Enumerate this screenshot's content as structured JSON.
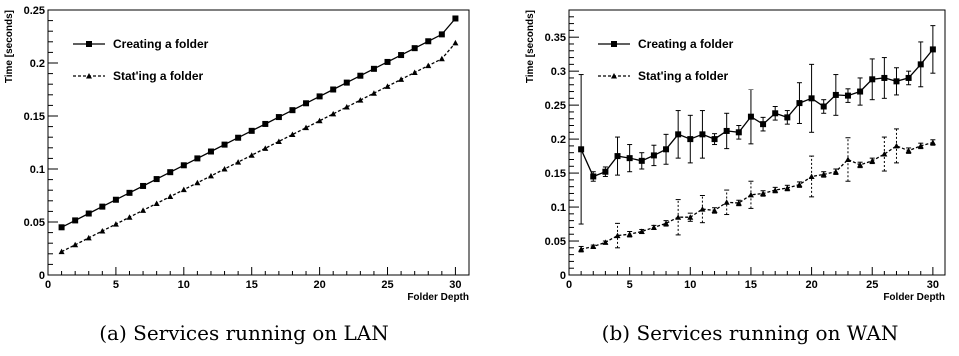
{
  "chart_data": [
    {
      "type": "line",
      "caption": "(a) Services running on LAN",
      "xlabel": "Folder Depth",
      "ylabel": "Time [seconds]",
      "xlim": [
        0,
        31
      ],
      "ylim": [
        0,
        0.25
      ],
      "xticks": [
        0,
        5,
        10,
        15,
        20,
        25,
        30
      ],
      "yticks": [
        0,
        0.05,
        0.1,
        0.15,
        0.2,
        0.25
      ],
      "legend_position": "top-left",
      "series": [
        {
          "name": "Creating a folder",
          "marker": "square",
          "line": "solid",
          "x": [
            1,
            2,
            3,
            4,
            5,
            6,
            7,
            8,
            9,
            10,
            11,
            12,
            13,
            14,
            15,
            16,
            17,
            18,
            19,
            20,
            21,
            22,
            23,
            24,
            25,
            26,
            27,
            28,
            29,
            30
          ],
          "y": [
            0.045,
            0.0515,
            0.058,
            0.0645,
            0.071,
            0.0775,
            0.084,
            0.0905,
            0.097,
            0.1035,
            0.11,
            0.1165,
            0.123,
            0.1295,
            0.136,
            0.1425,
            0.149,
            0.1555,
            0.162,
            0.1685,
            0.175,
            0.1815,
            0.188,
            0.1945,
            0.201,
            0.2075,
            0.214,
            0.2205,
            0.227,
            0.242
          ]
        },
        {
          "name": "Stat'ing a folder",
          "marker": "triangle",
          "line": "dashed",
          "x": [
            1,
            2,
            3,
            4,
            5,
            6,
            7,
            8,
            9,
            10,
            11,
            12,
            13,
            14,
            15,
            16,
            17,
            18,
            19,
            20,
            21,
            22,
            23,
            24,
            25,
            26,
            27,
            28,
            29,
            30
          ],
          "y": [
            0.022,
            0.0285,
            0.035,
            0.0415,
            0.048,
            0.0545,
            0.061,
            0.0675,
            0.074,
            0.0805,
            0.087,
            0.0935,
            0.1,
            0.1065,
            0.113,
            0.1195,
            0.126,
            0.1325,
            0.139,
            0.1455,
            0.152,
            0.1585,
            0.165,
            0.1715,
            0.178,
            0.1845,
            0.191,
            0.1975,
            0.204,
            0.219
          ]
        }
      ]
    },
    {
      "type": "line",
      "caption": "(b) Services running on WAN",
      "xlabel": "Folder Depth",
      "ylabel": "Time [seconds]",
      "xlim": [
        0,
        31
      ],
      "ylim": [
        0,
        0.39
      ],
      "xticks": [
        0,
        5,
        10,
        15,
        20,
        25,
        30
      ],
      "yticks": [
        0,
        0.05,
        0.1,
        0.15,
        0.2,
        0.25,
        0.3,
        0.35
      ],
      "legend_position": "top-left",
      "series": [
        {
          "name": "Creating a folder",
          "marker": "square",
          "line": "solid",
          "x": [
            1,
            2,
            3,
            4,
            5,
            6,
            7,
            8,
            9,
            10,
            11,
            12,
            13,
            14,
            15,
            16,
            17,
            18,
            19,
            20,
            21,
            22,
            23,
            24,
            25,
            26,
            27,
            28,
            29,
            30
          ],
          "y": [
            0.185,
            0.145,
            0.152,
            0.175,
            0.172,
            0.168,
            0.176,
            0.185,
            0.207,
            0.2,
            0.207,
            0.2,
            0.212,
            0.21,
            0.233,
            0.222,
            0.238,
            0.232,
            0.253,
            0.26,
            0.248,
            0.265,
            0.264,
            0.27,
            0.288,
            0.29,
            0.285,
            0.29,
            0.31,
            0.332
          ],
          "err": [
            0.11,
            0.007,
            0.007,
            0.028,
            0.02,
            0.012,
            0.015,
            0.022,
            0.035,
            0.035,
            0.035,
            0.008,
            0.026,
            0.01,
            0.04,
            0.01,
            0.01,
            0.01,
            0.03,
            0.05,
            0.01,
            0.03,
            0.01,
            0.02,
            0.03,
            0.03,
            0.02,
            0.01,
            0.033,
            0.035
          ]
        },
        {
          "name": "Stat'ing a folder",
          "marker": "triangle",
          "line": "dashed",
          "x": [
            1,
            2,
            3,
            4,
            5,
            6,
            7,
            8,
            9,
            10,
            11,
            12,
            13,
            14,
            15,
            16,
            17,
            18,
            19,
            20,
            21,
            22,
            23,
            24,
            25,
            26,
            27,
            28,
            29,
            30
          ],
          "y": [
            0.038,
            0.042,
            0.048,
            0.058,
            0.06,
            0.064,
            0.07,
            0.076,
            0.085,
            0.085,
            0.097,
            0.095,
            0.107,
            0.106,
            0.118,
            0.12,
            0.125,
            0.128,
            0.133,
            0.145,
            0.148,
            0.152,
            0.17,
            0.162,
            0.168,
            0.178,
            0.19,
            0.183,
            0.19,
            0.195
          ],
          "err": [
            0.004,
            0.002,
            0.002,
            0.018,
            0.004,
            0.003,
            0.003,
            0.004,
            0.026,
            0.006,
            0.02,
            0.004,
            0.018,
            0.004,
            0.02,
            0.004,
            0.004,
            0.004,
            0.004,
            0.03,
            0.004,
            0.004,
            0.032,
            0.004,
            0.004,
            0.025,
            0.025,
            0.004,
            0.004,
            0.004
          ]
        }
      ]
    }
  ]
}
